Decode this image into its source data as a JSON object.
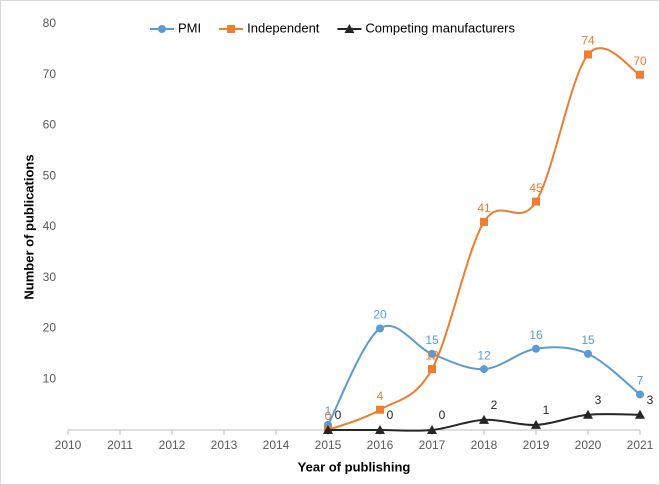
{
  "chart_data": {
    "type": "line",
    "x_label": "Year of publishing",
    "y_label": "Number of publications",
    "x": [
      2015,
      2016,
      2017,
      2018,
      2019,
      2020,
      2021
    ],
    "series": [
      {
        "name": "PMI",
        "color": "#5b9bd5",
        "marker": "circle",
        "values": [
          1,
          20,
          15,
          12,
          16,
          15,
          7
        ]
      },
      {
        "name": "Independent",
        "color": "#ed7d31",
        "marker": "square",
        "values": [
          0,
          4,
          12,
          41,
          45,
          74,
          70
        ]
      },
      {
        "name": "Competing manufacturers",
        "color": "#262626",
        "marker": "triangle",
        "values": [
          0,
          0,
          0,
          2,
          1,
          3,
          3
        ]
      }
    ],
    "xlim": [
      2010,
      2021
    ],
    "xticks": [
      2010,
      2011,
      2012,
      2013,
      2014,
      2015,
      2016,
      2017,
      2018,
      2019,
      2020,
      2021
    ],
    "ylim": [
      0,
      80
    ],
    "yticks": [
      10,
      20,
      30,
      40,
      50,
      60,
      70,
      80
    ],
    "grid": false,
    "legend": "top",
    "smooth": true
  }
}
